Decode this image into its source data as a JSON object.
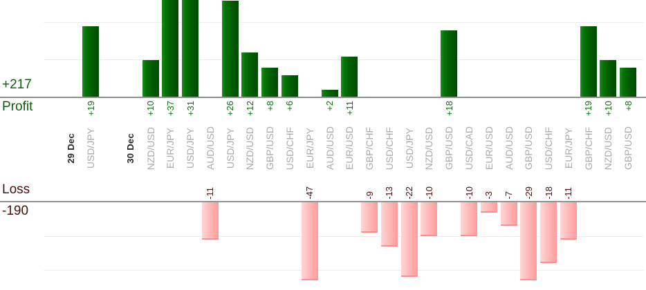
{
  "summaries": {
    "profit_total": "+217",
    "profit_label": "Profit",
    "loss_label": "Loss",
    "loss_total": "-190"
  },
  "colors": {
    "profit_bar_dark": "#004a00",
    "profit_bar_light": "#1b8f1b",
    "loss_bar_light": "#ffd7d7",
    "loss_bar_dark": "#ff9b9b",
    "profit_text": "#067306",
    "profit_total_text": "#0b5e0b",
    "loss_text": "#4c0d0d",
    "pair_label_text": "#aaaaaa",
    "date_label_text": "#262626"
  },
  "chart_data": {
    "type": "bar",
    "title": "",
    "layout": "dual-panel profit above / loss below, shared category axis of trades",
    "grid": true,
    "gridline_interval": 10,
    "profit_panel_visible_range": [
      0,
      26
    ],
    "loss_panel_visible_range": [
      0,
      -23
    ],
    "clipped_bars_note": "bars +37, +31, +26 clipped at top edge; -47 and -29 clipped at bottom edge",
    "totals": {
      "profit": 217,
      "loss": -190
    },
    "columns": [
      {
        "label": "29 Dec",
        "kind": "date",
        "value": null
      },
      {
        "label": "USD/JPY",
        "kind": "pair",
        "value": 19
      },
      {
        "label": "",
        "kind": "spacer",
        "value": null
      },
      {
        "label": "30 Dec",
        "kind": "date",
        "value": null
      },
      {
        "label": "NZD/USD",
        "kind": "pair",
        "value": 10
      },
      {
        "label": "EUR/JPY",
        "kind": "pair",
        "value": 37
      },
      {
        "label": "USD/JPY",
        "kind": "pair",
        "value": 31
      },
      {
        "label": "AUD/USD",
        "kind": "pair",
        "value": -11
      },
      {
        "label": "USD/JPY",
        "kind": "pair",
        "value": 26
      },
      {
        "label": "NZD/USD",
        "kind": "pair",
        "value": 12
      },
      {
        "label": "GBP/USD",
        "kind": "pair",
        "value": 8
      },
      {
        "label": "USD/CHF",
        "kind": "pair",
        "value": 6
      },
      {
        "label": "EUR/JPY",
        "kind": "pair",
        "value": -47
      },
      {
        "label": "AUD/USD",
        "kind": "pair",
        "value": 2
      },
      {
        "label": "EUR/USD",
        "kind": "pair",
        "value": 11
      },
      {
        "label": "GBP/CHF",
        "kind": "pair",
        "value": -9
      },
      {
        "label": "USD/CHF",
        "kind": "pair",
        "value": -13
      },
      {
        "label": "USD/JPY",
        "kind": "pair",
        "value": -22
      },
      {
        "label": "NZD/USD",
        "kind": "pair",
        "value": -10
      },
      {
        "label": "GBP/USD",
        "kind": "pair",
        "value": 18
      },
      {
        "label": "USD/CAD",
        "kind": "pair",
        "value": -10
      },
      {
        "label": "EUR/USD",
        "kind": "pair",
        "value": -3
      },
      {
        "label": "AUD/USD",
        "kind": "pair",
        "value": -7
      },
      {
        "label": "GBP/USD",
        "kind": "pair",
        "value": -29
      },
      {
        "label": "USD/CHF",
        "kind": "pair",
        "value": -18
      },
      {
        "label": "EUR/JPY",
        "kind": "pair",
        "value": -11
      },
      {
        "label": "GBP/CHF",
        "kind": "pair",
        "value": 19
      },
      {
        "label": "NZD/USD",
        "kind": "pair",
        "value": 10
      },
      {
        "label": "GBP/USD",
        "kind": "pair",
        "value": 8
      }
    ]
  }
}
